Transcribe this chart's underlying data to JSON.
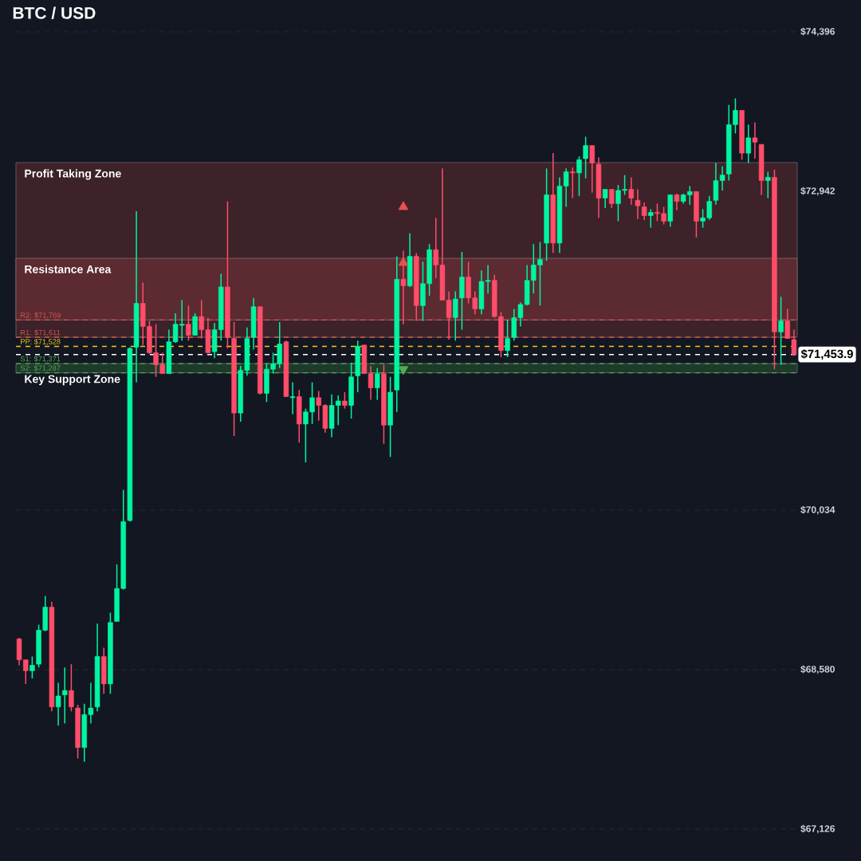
{
  "chart_data": {
    "type": "candlestick",
    "title": "BTC / USD",
    "categories": [
      null,
      null,
      null,
      null,
      null,
      null,
      null,
      null,
      null,
      null,
      null,
      null,
      null,
      null,
      null,
      null,
      null,
      null,
      null,
      null,
      null,
      null,
      null,
      null,
      null,
      null,
      null,
      null,
      null,
      null,
      null,
      null,
      null,
      null,
      null,
      null,
      null,
      null,
      null,
      null,
      null,
      null,
      null,
      null,
      null,
      null,
      null,
      null,
      null,
      null,
      null,
      null,
      null,
      null,
      null,
      null,
      null,
      null,
      null,
      null,
      null,
      null,
      null,
      null,
      null,
      null,
      null,
      null,
      null,
      null,
      null,
      null,
      null,
      null,
      null,
      null,
      null,
      null,
      null,
      null,
      null,
      null,
      null,
      null,
      null,
      null,
      null,
      null,
      null,
      null,
      null,
      null,
      null,
      null,
      null,
      null,
      null,
      null,
      null,
      null,
      null,
      null,
      null,
      null,
      null,
      null,
      null,
      null,
      null,
      null,
      null,
      null,
      null,
      null,
      null,
      null,
      null,
      null,
      null,
      null
    ],
    "ohlc": [
      [
        68860,
        68870,
        68620,
        68670
      ],
      [
        68670,
        68670,
        68450,
        68570
      ],
      [
        68570,
        68700,
        68500,
        68620
      ],
      [
        68630,
        68990,
        68600,
        68940
      ],
      [
        68940,
        69250,
        68930,
        69150
      ],
      [
        69150,
        69200,
        68200,
        68240
      ],
      [
        68240,
        68460,
        68070,
        68340
      ],
      [
        68350,
        68600,
        68090,
        68390
      ],
      [
        68390,
        68630,
        68200,
        68240
      ],
      [
        68230,
        68260,
        67770,
        67870
      ],
      [
        67870,
        68270,
        67740,
        68170
      ],
      [
        68170,
        68460,
        68090,
        68230
      ],
      [
        68240,
        69000,
        68200,
        68700
      ],
      [
        68700,
        68780,
        68360,
        68450
      ],
      [
        68450,
        69100,
        68360,
        69010
      ],
      [
        69020,
        69540,
        69020,
        69320
      ],
      [
        69320,
        70220,
        69310,
        69930
      ],
      [
        69940,
        71520,
        69930,
        71510
      ],
      [
        71520,
        72760,
        71200,
        71920
      ],
      [
        71920,
        72110,
        71540,
        71710
      ],
      [
        71710,
        71760,
        71460,
        71470
      ],
      [
        71470,
        71730,
        71250,
        71360
      ],
      [
        71360,
        71470,
        71280,
        71280
      ],
      [
        71280,
        71680,
        71280,
        71570
      ],
      [
        71570,
        71830,
        71560,
        71730
      ],
      [
        71720,
        71950,
        71580,
        71730
      ],
      [
        71730,
        71900,
        71580,
        71630
      ],
      [
        71630,
        71830,
        71630,
        71800
      ],
      [
        71800,
        71950,
        71600,
        71680
      ],
      [
        71680,
        71790,
        71470,
        71470
      ],
      [
        71480,
        71740,
        71420,
        71680
      ],
      [
        71680,
        72190,
        71580,
        72070
      ],
      [
        72070,
        72850,
        71510,
        71610
      ],
      [
        71600,
        71750,
        70710,
        70920
      ],
      [
        70920,
        71350,
        70840,
        71310
      ],
      [
        71310,
        71700,
        71260,
        71600
      ],
      [
        71610,
        71970,
        71500,
        71890
      ],
      [
        71890,
        71890,
        71090,
        71100
      ],
      [
        71100,
        71370,
        71020,
        71320
      ],
      [
        71320,
        71470,
        71280,
        71370
      ],
      [
        71370,
        71750,
        71330,
        71550
      ],
      [
        71570,
        71580,
        71070,
        71070
      ],
      [
        71060,
        71200,
        70910,
        71070
      ],
      [
        71070,
        71130,
        70650,
        70820
      ],
      [
        70820,
        70960,
        70470,
        70930
      ],
      [
        70930,
        71200,
        70820,
        71060
      ],
      [
        71060,
        71120,
        70850,
        70990
      ],
      [
        70990,
        71000,
        70740,
        70780
      ],
      [
        70780,
        71090,
        70700,
        70990
      ],
      [
        70990,
        71080,
        70810,
        71030
      ],
      [
        71030,
        71110,
        70960,
        70990
      ],
      [
        70990,
        71380,
        70870,
        71250
      ],
      [
        71260,
        71580,
        71110,
        71530
      ],
      [
        71540,
        71540,
        71280,
        71280
      ],
      [
        71280,
        71350,
        71040,
        71150
      ],
      [
        71150,
        71330,
        71040,
        71280
      ],
      [
        71280,
        71360,
        70640,
        70810
      ],
      [
        70810,
        71250,
        70520,
        71110
      ],
      [
        71130,
        72350,
        70930,
        72140
      ],
      [
        72140,
        72400,
        71730,
        72080
      ],
      [
        72080,
        72560,
        72070,
        72350
      ],
      [
        72350,
        72380,
        71760,
        71900
      ],
      [
        71900,
        72300,
        71760,
        72100
      ],
      [
        72100,
        72460,
        71990,
        72410
      ],
      [
        72410,
        72700,
        72150,
        72270
      ],
      [
        72270,
        73150,
        71950,
        71950
      ],
      [
        71950,
        72030,
        71590,
        71790
      ],
      [
        71790,
        72030,
        71580,
        71960
      ],
      [
        71970,
        72390,
        71680,
        72160
      ],
      [
        72160,
        72300,
        71920,
        71970
      ],
      [
        71970,
        72030,
        71820,
        71870
      ],
      [
        71870,
        72220,
        71820,
        72120
      ],
      [
        72120,
        72270,
        72010,
        72130
      ],
      [
        72130,
        72180,
        71790,
        71800
      ],
      [
        71800,
        71840,
        71430,
        71490
      ],
      [
        71490,
        71770,
        71430,
        71600
      ],
      [
        71610,
        71870,
        71580,
        71790
      ],
      [
        71790,
        71930,
        71710,
        71910
      ],
      [
        71910,
        72270,
        71900,
        72130
      ],
      [
        72130,
        72460,
        72010,
        72270
      ],
      [
        72270,
        72480,
        71900,
        72320
      ],
      [
        72470,
        73150,
        72310,
        72910
      ],
      [
        72910,
        73290,
        72380,
        72470
      ],
      [
        72470,
        73070,
        72380,
        72990
      ],
      [
        72990,
        73150,
        72800,
        73120
      ],
      [
        73120,
        73160,
        72880,
        73110
      ],
      [
        73110,
        73260,
        72900,
        73230
      ],
      [
        73240,
        73440,
        73060,
        73360
      ],
      [
        73360,
        73360,
        72930,
        73200
      ],
      [
        73190,
        73250,
        72700,
        72880
      ],
      [
        72880,
        72960,
        72790,
        72960
      ],
      [
        72960,
        72960,
        72790,
        72830
      ],
      [
        72830,
        73000,
        72670,
        72950
      ],
      [
        72950,
        73090,
        72910,
        72960
      ],
      [
        72960,
        73070,
        72820,
        72880
      ],
      [
        72860,
        72960,
        72690,
        72810
      ],
      [
        72800,
        72840,
        72680,
        72720
      ],
      [
        72720,
        72780,
        72610,
        72750
      ],
      [
        72750,
        72830,
        72670,
        72740
      ],
      [
        72740,
        72800,
        72640,
        72670
      ],
      [
        72670,
        72910,
        72620,
        72910
      ],
      [
        72910,
        72920,
        72770,
        72850
      ],
      [
        72850,
        72920,
        72830,
        72910
      ],
      [
        72910,
        72990,
        72820,
        72940
      ],
      [
        72940,
        72940,
        72520,
        72670
      ],
      [
        72670,
        72780,
        72610,
        72700
      ],
      [
        72700,
        72900,
        72680,
        72850
      ],
      [
        72860,
        73200,
        72820,
        73040
      ],
      [
        73040,
        73170,
        72950,
        73090
      ],
      [
        73100,
        73730,
        73040,
        73550
      ],
      [
        73550,
        73790,
        73470,
        73680
      ],
      [
        73680,
        73680,
        73230,
        73290
      ],
      [
        73290,
        73550,
        73200,
        73430
      ],
      [
        73430,
        73570,
        73240,
        73390
      ],
      [
        73370,
        73370,
        72910,
        73040
      ],
      [
        73040,
        73120,
        72880,
        73070
      ],
      [
        73070,
        73140,
        71320,
        71660
      ],
      [
        71660,
        71980,
        71360,
        71760
      ],
      [
        71760,
        71870,
        71600,
        71600
      ],
      [
        71590,
        71680,
        71450,
        71453.9
      ]
    ],
    "colors": [
      "#ff4d6a",
      "#ff4d6a",
      "#00f5a0",
      "#00f5a0",
      "#00f5a0",
      "#ff4d6a",
      "#00f5a0",
      "#00f5a0",
      "#ff4d6a",
      "#ff4d6a",
      "#00f5a0",
      "#00f5a0",
      "#00f5a0",
      "#ff4d6a",
      "#00f5a0",
      "#00f5a0",
      "#00f5a0",
      "#00f5a0",
      "#00f5a0",
      "#ff4d6a",
      "#ff4d6a",
      "#ff4d6a",
      "#ff4d6a",
      "#00f5a0",
      "#00f5a0",
      "#00f5a0",
      "#ff4d6a",
      "#00f5a0",
      "#ff4d6a",
      "#ff4d6a",
      "#00f5a0",
      "#00f5a0",
      "#ff4d6a",
      "#ff4d6a",
      "#00f5a0",
      "#00f5a0",
      "#00f5a0",
      "#ff4d6a",
      "#00f5a0",
      "#00f5a0",
      "#00f5a0",
      "#ff4d6a",
      "#00f5a0",
      "#ff4d6a",
      "#00f5a0",
      "#00f5a0",
      "#ff4d6a",
      "#ff4d6a",
      "#00f5a0",
      "#00f5a0",
      "#ff4d6a",
      "#00f5a0",
      "#00f5a0",
      "#ff4d6a",
      "#ff4d6a",
      "#00f5a0",
      "#ff4d6a",
      "#00f5a0",
      "#00f5a0",
      "#ff4d6a",
      "#00f5a0",
      "#ff4d6a",
      "#00f5a0",
      "#00f5a0",
      "#ff4d6a",
      "#ff4d6a",
      "#ff4d6a",
      "#00f5a0",
      "#00f5a0",
      "#ff4d6a",
      "#ff4d6a",
      "#00f5a0",
      "#00f5a0",
      "#ff4d6a",
      "#ff4d6a",
      "#00f5a0",
      "#00f5a0",
      "#00f5a0",
      "#00f5a0",
      "#00f5a0",
      "#00f5a0",
      "#00f5a0",
      "#ff4d6a",
      "#00f5a0",
      "#00f5a0",
      "#ff4d6a",
      "#00f5a0",
      "#00f5a0",
      "#ff4d6a",
      "#ff4d6a",
      "#00f5a0",
      "#ff4d6a",
      "#00f5a0",
      "#00f5a0",
      "#ff4d6a",
      "#ff4d6a",
      "#ff4d6a",
      "#00f5a0",
      "#ff4d6a",
      "#ff4d6a",
      "#00f5a0",
      "#ff4d6a",
      "#00f5a0",
      "#00f5a0",
      "#ff4d6a",
      "#00f5a0",
      "#00f5a0",
      "#00f5a0",
      "#00f5a0",
      "#00f5a0",
      "#00f5a0",
      "#ff4d6a",
      "#00f5a0",
      "#ff4d6a",
      "#ff4d6a",
      "#00f5a0",
      "#ff4d6a",
      "#00f5a0",
      "#ff4d6a",
      "#ff4d6a"
    ],
    "series": [
      {
        "type": "scatter",
        "marker": "triangle",
        "color": "#e8504f",
        "values": [
          null,
          null,
          null,
          null,
          null,
          null,
          null,
          null,
          null,
          null,
          null,
          null,
          null,
          null,
          null,
          null,
          null,
          null,
          null,
          null,
          null,
          null,
          null,
          null,
          null,
          null,
          null,
          null,
          null,
          null,
          null,
          null,
          null,
          null,
          null,
          null,
          null,
          null,
          null,
          null,
          null,
          null,
          null,
          null,
          null,
          null,
          null,
          null,
          null,
          null,
          null,
          null,
          null,
          null,
          null,
          null,
          null,
          null,
          null,
          72800,
          null,
          null,
          null,
          null,
          null,
          null,
          null,
          null,
          null,
          null,
          null,
          null,
          null,
          null,
          null,
          null,
          null,
          null,
          null,
          null,
          null,
          null,
          null,
          null,
          null,
          null,
          null,
          null,
          null,
          null,
          null,
          null,
          null,
          null,
          null,
          null,
          null,
          null,
          null,
          null,
          null,
          null,
          null,
          null,
          null,
          null,
          null,
          null,
          null,
          null,
          null,
          null,
          null,
          null,
          null,
          null,
          null,
          null,
          null,
          null
        ]
      },
      {
        "type": "scatter",
        "marker": "triangle",
        "color": "#e8504f",
        "values": [
          null,
          null,
          null,
          null,
          null,
          null,
          null,
          null,
          null,
          null,
          null,
          null,
          null,
          null,
          null,
          null,
          null,
          null,
          null,
          null,
          null,
          null,
          null,
          null,
          null,
          null,
          null,
          null,
          null,
          null,
          null,
          null,
          null,
          null,
          null,
          null,
          null,
          null,
          null,
          null,
          null,
          null,
          null,
          null,
          null,
          null,
          null,
          null,
          null,
          null,
          null,
          null,
          null,
          null,
          null,
          null,
          null,
          null,
          null,
          72290,
          null,
          null,
          null,
          null,
          null,
          null,
          null,
          null,
          null,
          null,
          null,
          null,
          null,
          null,
          null,
          null,
          null,
          null,
          null,
          null,
          null,
          null,
          null,
          null,
          null,
          null,
          null,
          null,
          null,
          null,
          null,
          null,
          null,
          null,
          null,
          null,
          null,
          null,
          null,
          null,
          null,
          null,
          null,
          null,
          null,
          null,
          null,
          null,
          null,
          null,
          null,
          null,
          null,
          null,
          null,
          null,
          null,
          null,
          null,
          null
        ]
      },
      {
        "type": "scatter",
        "marker": "triangle-down",
        "color": "#4caf50",
        "values": [
          null,
          null,
          null,
          null,
          null,
          null,
          null,
          null,
          null,
          null,
          null,
          null,
          null,
          null,
          null,
          null,
          null,
          null,
          null,
          null,
          null,
          null,
          null,
          null,
          null,
          null,
          null,
          null,
          null,
          null,
          null,
          null,
          null,
          null,
          null,
          null,
          null,
          null,
          null,
          null,
          null,
          null,
          null,
          null,
          null,
          null,
          null,
          null,
          null,
          null,
          null,
          null,
          null,
          null,
          null,
          null,
          null,
          null,
          null,
          71320,
          null,
          null,
          null,
          null,
          null,
          null,
          null,
          null,
          null,
          null,
          null,
          null,
          null,
          null,
          null,
          null,
          null,
          null,
          null,
          null,
          null,
          null,
          null,
          null,
          null,
          null,
          null,
          null,
          null,
          null,
          null,
          null,
          null,
          null,
          null,
          null,
          null,
          null,
          null,
          null,
          null,
          null,
          null,
          null,
          null,
          null,
          null,
          null,
          null,
          null,
          null,
          null,
          null,
          null,
          null,
          null,
          null,
          null,
          null,
          null
        ]
      }
    ],
    "ylim": [
      67126,
      74396
    ],
    "yticks": [
      {
        "value": 67126,
        "label": "$67,126"
      },
      {
        "value": 68580,
        "label": "$68,580"
      },
      {
        "value": 70034,
        "label": "$70,034"
      },
      {
        "value": 72942,
        "label": "$72,942"
      },
      {
        "value": 74396,
        "label": "$74,396"
      }
    ],
    "tick_labels": "y",
    "grid": "y",
    "bands": [
      {
        "axis": "y",
        "from": 71611,
        "to": 73204,
        "label": "Profit Taking Zone",
        "color": "#3d2229"
      },
      {
        "axis": "y",
        "from": 71769,
        "to": 72331,
        "label": "Resistance Area",
        "color": "#5c2a31"
      },
      {
        "axis": "y",
        "from": 71287,
        "to": 71371,
        "label": "Key Support Zone",
        "color": "#1f3a2b"
      }
    ],
    "ref_lines": [
      {
        "axis": "y",
        "value": 71769,
        "label": "R2: $71,769",
        "color": "#d9534f",
        "line_style": "dashed"
      },
      {
        "axis": "y",
        "value": 71611,
        "label": "R1: $71,611",
        "color": "#d9534f",
        "line_style": "dashed"
      },
      {
        "axis": "y",
        "value": 71528,
        "label": "PP: $71,528",
        "color": "#f5c518",
        "line_style": "dashed"
      },
      {
        "axis": "y",
        "value": 71371,
        "label": "S1: $71,371",
        "color": "#4caf50",
        "line_style": "dashed"
      },
      {
        "axis": "y",
        "value": 71287,
        "label": "S2: $71,287",
        "color": "#4caf50",
        "line_style": "dashed"
      },
      {
        "axis": "y",
        "value": 71453.9,
        "label": "$71,453.9",
        "color": "#ffffff",
        "line_style": "dashed"
      }
    ]
  }
}
